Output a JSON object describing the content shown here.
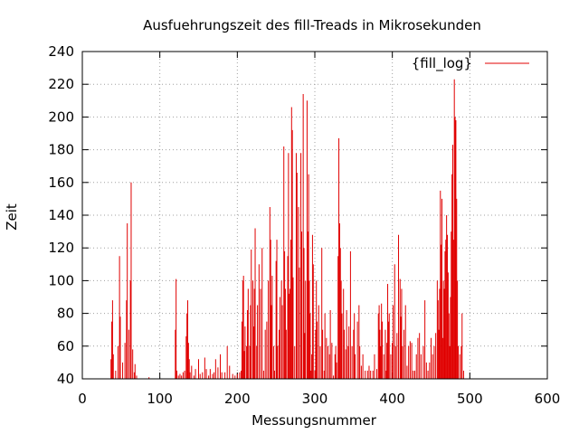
{
  "chart_data": {
    "type": "bar",
    "title": "Ausfuehrungszeit des fill-Treads in Mikrosekunden",
    "xlabel": "Messungsnummer",
    "ylabel": "Zeit",
    "xlim": [
      0,
      600
    ],
    "ylim": [
      40,
      240
    ],
    "xticks": [
      0,
      100,
      200,
      300,
      400,
      500,
      600
    ],
    "yticks": [
      40,
      60,
      80,
      100,
      120,
      140,
      160,
      180,
      200,
      220,
      240
    ],
    "grid": true,
    "legend_position": "top-right",
    "series": [
      {
        "name": "{fill_log}",
        "color": "#e00000",
        "points": [
          [
            37,
            52
          ],
          [
            38,
            75
          ],
          [
            39,
            88
          ],
          [
            40,
            55
          ],
          [
            43,
            45
          ],
          [
            46,
            60
          ],
          [
            48,
            115
          ],
          [
            49,
            78
          ],
          [
            52,
            50
          ],
          [
            55,
            62
          ],
          [
            57,
            88
          ],
          [
            58,
            135
          ],
          [
            60,
            70
          ],
          [
            62,
            100
          ],
          [
            63,
            160
          ],
          [
            65,
            58
          ],
          [
            67,
            44
          ],
          [
            68,
            49
          ],
          [
            70,
            42
          ],
          [
            86,
            41
          ],
          [
            120,
            70
          ],
          [
            121,
            101
          ],
          [
            122,
            45
          ],
          [
            124,
            42
          ],
          [
            126,
            43
          ],
          [
            128,
            42
          ],
          [
            130,
            44
          ],
          [
            132,
            45
          ],
          [
            134,
            66
          ],
          [
            135,
            80
          ],
          [
            136,
            88
          ],
          [
            137,
            62
          ],
          [
            138,
            52
          ],
          [
            139,
            44
          ],
          [
            141,
            48
          ],
          [
            144,
            42
          ],
          [
            146,
            46
          ],
          [
            150,
            52
          ],
          [
            152,
            43
          ],
          [
            155,
            44
          ],
          [
            158,
            53
          ],
          [
            160,
            46
          ],
          [
            163,
            42
          ],
          [
            165,
            46
          ],
          [
            168,
            43
          ],
          [
            170,
            44
          ],
          [
            172,
            52
          ],
          [
            175,
            47
          ],
          [
            178,
            55
          ],
          [
            180,
            44
          ],
          [
            184,
            44
          ],
          [
            187,
            60
          ],
          [
            190,
            48
          ],
          [
            194,
            43
          ],
          [
            197,
            42
          ],
          [
            200,
            43
          ],
          [
            203,
            44
          ],
          [
            205,
            45
          ],
          [
            206,
            75
          ],
          [
            207,
            100
          ],
          [
            208,
            103
          ],
          [
            209,
            57
          ],
          [
            210,
            72
          ],
          [
            212,
            60
          ],
          [
            213,
            82
          ],
          [
            214,
            95
          ],
          [
            216,
            60
          ],
          [
            217,
            85
          ],
          [
            218,
            119
          ],
          [
            220,
            100
          ],
          [
            221,
            72
          ],
          [
            222,
            95
          ],
          [
            223,
            132
          ],
          [
            225,
            60
          ],
          [
            226,
            85
          ],
          [
            228,
            110
          ],
          [
            230,
            95
          ],
          [
            232,
            120
          ],
          [
            234,
            45
          ],
          [
            236,
            70
          ],
          [
            238,
            75
          ],
          [
            240,
            100
          ],
          [
            242,
            145
          ],
          [
            243,
            125
          ],
          [
            244,
            85
          ],
          [
            245,
            103
          ],
          [
            247,
            60
          ],
          [
            248,
            45
          ],
          [
            250,
            112
          ],
          [
            251,
            125
          ],
          [
            252,
            60
          ],
          [
            254,
            70
          ],
          [
            255,
            90
          ],
          [
            257,
            100
          ],
          [
            258,
            85
          ],
          [
            260,
            182
          ],
          [
            261,
            118
          ],
          [
            262,
            95
          ],
          [
            263,
            70
          ],
          [
            265,
            115
          ],
          [
            266,
            178
          ],
          [
            267,
            92
          ],
          [
            268,
            95
          ],
          [
            269,
            125
          ],
          [
            270,
            206
          ],
          [
            271,
            192
          ],
          [
            272,
            102
          ],
          [
            274,
            60
          ],
          [
            276,
            178
          ],
          [
            277,
            166
          ],
          [
            279,
            145
          ],
          [
            280,
            108
          ],
          [
            282,
            178
          ],
          [
            283,
            130
          ],
          [
            285,
            214
          ],
          [
            286,
            120
          ],
          [
            287,
            68
          ],
          [
            288,
            100
          ],
          [
            290,
            210
          ],
          [
            291,
            130
          ],
          [
            292,
            165
          ],
          [
            293,
            100
          ],
          [
            294,
            80
          ],
          [
            295,
            45
          ],
          [
            296,
            55
          ],
          [
            297,
            128
          ],
          [
            298,
            110
          ],
          [
            300,
            45
          ],
          [
            301,
            70
          ],
          [
            302,
            100
          ],
          [
            303,
            75
          ],
          [
            305,
            85
          ],
          [
            307,
            60
          ],
          [
            309,
            120
          ],
          [
            310,
            70
          ],
          [
            312,
            45
          ],
          [
            313,
            80
          ],
          [
            315,
            65
          ],
          [
            317,
            60
          ],
          [
            319,
            55
          ],
          [
            320,
            82
          ],
          [
            322,
            62
          ],
          [
            324,
            42
          ],
          [
            326,
            55
          ],
          [
            327,
            60
          ],
          [
            328,
            50
          ],
          [
            330,
            115
          ],
          [
            331,
            187
          ],
          [
            332,
            135
          ],
          [
            333,
            120
          ],
          [
            334,
            100
          ],
          [
            335,
            80
          ],
          [
            337,
            95
          ],
          [
            338,
            70
          ],
          [
            340,
            58
          ],
          [
            341,
            82
          ],
          [
            343,
            60
          ],
          [
            344,
            72
          ],
          [
            346,
            118
          ],
          [
            348,
            60
          ],
          [
            350,
            70
          ],
          [
            351,
            80
          ],
          [
            352,
            55
          ],
          [
            355,
            75
          ],
          [
            357,
            85
          ],
          [
            358,
            60
          ],
          [
            360,
            48
          ],
          [
            362,
            55
          ],
          [
            365,
            45
          ],
          [
            368,
            45
          ],
          [
            370,
            48
          ],
          [
            372,
            45
          ],
          [
            375,
            45
          ],
          [
            377,
            55
          ],
          [
            380,
            46
          ],
          [
            382,
            80
          ],
          [
            383,
            85
          ],
          [
            384,
            70
          ],
          [
            385,
            60
          ],
          [
            386,
            86
          ],
          [
            387,
            75
          ],
          [
            389,
            55
          ],
          [
            391,
            70
          ],
          [
            392,
            45
          ],
          [
            393,
            62
          ],
          [
            394,
            98
          ],
          [
            395,
            75
          ],
          [
            396,
            80
          ],
          [
            398,
            55
          ],
          [
            400,
            62
          ],
          [
            401,
            85
          ],
          [
            403,
            110
          ],
          [
            404,
            60
          ],
          [
            406,
            68
          ],
          [
            408,
            128
          ],
          [
            410,
            101
          ],
          [
            411,
            78
          ],
          [
            412,
            95
          ],
          [
            413,
            60
          ],
          [
            415,
            70
          ],
          [
            417,
            85
          ],
          [
            419,
            48
          ],
          [
            421,
            60
          ],
          [
            423,
            63
          ],
          [
            425,
            62
          ],
          [
            427,
            45
          ],
          [
            429,
            45
          ],
          [
            431,
            55
          ],
          [
            433,
            65
          ],
          [
            435,
            68
          ],
          [
            437,
            55
          ],
          [
            440,
            60
          ],
          [
            442,
            88
          ],
          [
            444,
            50
          ],
          [
            446,
            45
          ],
          [
            448,
            50
          ],
          [
            450,
            65
          ],
          [
            452,
            55
          ],
          [
            454,
            60
          ],
          [
            456,
            68
          ],
          [
            458,
            100
          ],
          [
            459,
            88
          ],
          [
            460,
            70
          ],
          [
            461,
            95
          ],
          [
            462,
            155
          ],
          [
            463,
            122
          ],
          [
            464,
            150
          ],
          [
            465,
            65
          ],
          [
            466,
            100
          ],
          [
            467,
            95
          ],
          [
            468,
            118
          ],
          [
            469,
            125
          ],
          [
            470,
            140
          ],
          [
            471,
            128
          ],
          [
            472,
            105
          ],
          [
            473,
            80
          ],
          [
            474,
            60
          ],
          [
            475,
            90
          ],
          [
            476,
            130
          ],
          [
            477,
            165
          ],
          [
            478,
            183
          ],
          [
            479,
            125
          ],
          [
            480,
            223
          ],
          [
            481,
            200
          ],
          [
            482,
            198
          ],
          [
            483,
            150
          ],
          [
            484,
            100
          ],
          [
            485,
            60
          ],
          [
            487,
            55
          ],
          [
            489,
            60
          ],
          [
            490,
            80
          ],
          [
            492,
            45
          ]
        ]
      }
    ]
  }
}
